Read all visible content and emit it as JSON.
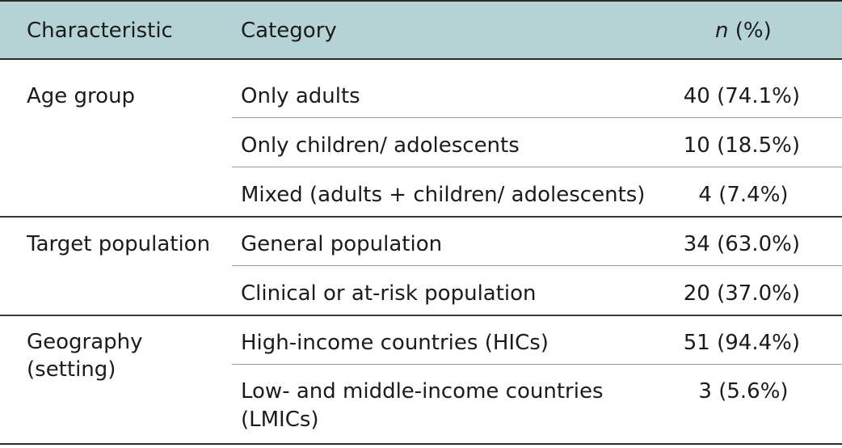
{
  "header": {
    "characteristic": "Characteristic",
    "category": "Category",
    "n_italic": "n",
    "n_suffix": " (%)"
  },
  "rows": {
    "age_group": {
      "label": "Age group",
      "items": [
        {
          "category": "Only adults",
          "value": "40 (74.1%)"
        },
        {
          "category": "Only children/ adolescents",
          "value": "10 (18.5%)"
        },
        {
          "category": "Mixed (adults + children/ adolescents)",
          "value": "4 (7.4%)"
        }
      ]
    },
    "target_population": {
      "label": "Target population",
      "items": [
        {
          "category": "General population",
          "value": "34 (63.0%)"
        },
        {
          "category": "Clinical or at-risk population",
          "value": "20 (37.0%)"
        }
      ]
    },
    "geography": {
      "label_line1": "Geography",
      "label_line2": "(setting)",
      "items": [
        {
          "category": "High-income countries (HICs)",
          "value": "51 (94.4%)"
        },
        {
          "category_line1": "Low- and middle-income countries",
          "category_line2": "(LMICs)",
          "value": "3 (5.6%)"
        }
      ]
    }
  }
}
